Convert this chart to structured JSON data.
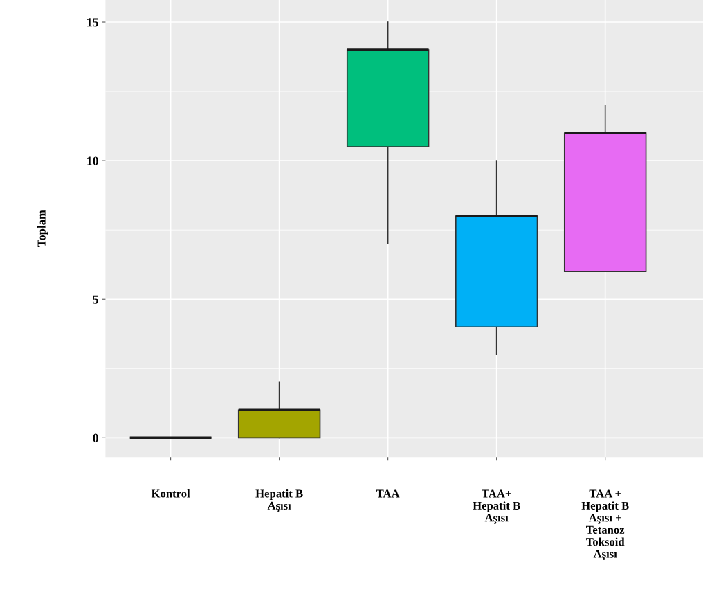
{
  "chart_data": {
    "type": "box",
    "ylabel": "Toplam",
    "categories": [
      "Kontrol",
      "Hepatit B\nAşısı",
      "TAA",
      "TAA+\nHepatit B\nAşısı",
      "TAA +\nHepatit B\nAşısı +\nTetanoz\nToksoid\nAşısı"
    ],
    "colors": [
      "#333333",
      "#a3a500",
      "#00bf7d",
      "#00b0f6",
      "#e76bf3"
    ],
    "boxes": [
      {
        "low": 0,
        "q1": 0,
        "median": 0,
        "q3": 0,
        "high": 0
      },
      {
        "low": 0,
        "q1": 0,
        "median": 1,
        "q3": 1,
        "high": 2
      },
      {
        "low": 7,
        "q1": 10.5,
        "median": 14,
        "q3": 14,
        "high": 15
      },
      {
        "low": 3,
        "q1": 4,
        "median": 8,
        "q3": 8,
        "high": 10
      },
      {
        "low": 6,
        "q1": 6,
        "median": 11,
        "q3": 11,
        "high": 12
      }
    ],
    "ylim": [
      -0.7,
      15.8
    ],
    "yticks": [
      0,
      5,
      10,
      15
    ],
    "grid": true
  }
}
